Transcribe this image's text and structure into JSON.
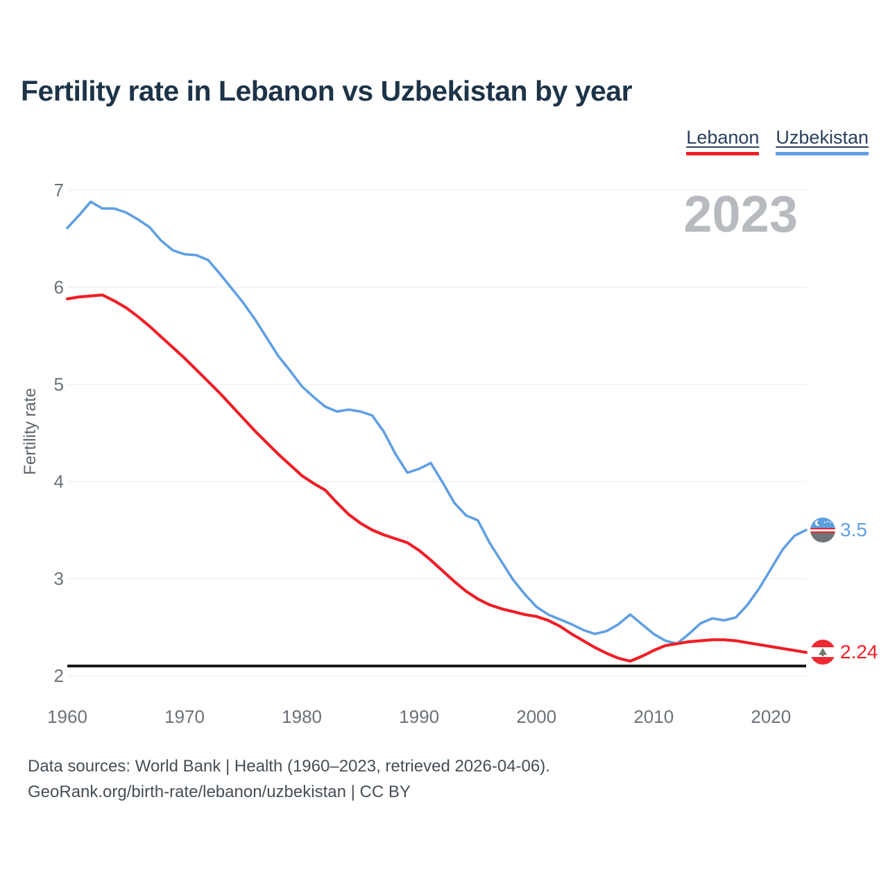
{
  "header": {
    "title": "Fertility rate in Lebanon vs Uzbekistan by year"
  },
  "legend": {
    "items": [
      {
        "label": "Lebanon",
        "color": "#ef1e26"
      },
      {
        "label": "Uzbekistan",
        "color": "#5f9fe3"
      }
    ]
  },
  "watermark": "2023",
  "chart_data": {
    "type": "line",
    "title": "Fertility rate in Lebanon vs Uzbekistan by year",
    "xlabel": "",
    "ylabel": "Fertility rate",
    "x_range": [
      1960,
      2023
    ],
    "ylim": [
      2,
      7
    ],
    "yticks": [
      2,
      3,
      4,
      5,
      6,
      7
    ],
    "xticks": [
      1960,
      1970,
      1980,
      1990,
      2000,
      2010,
      2020
    ],
    "grid": true,
    "grid_color": "#e8e8ea",
    "tick_color": "#6a7179",
    "legend_position": "top-right",
    "reference_line": {
      "value": 2.1,
      "color": "#17191c",
      "label": "replacement-level-line"
    },
    "years": [
      1960,
      1961,
      1962,
      1963,
      1964,
      1965,
      1966,
      1967,
      1968,
      1969,
      1970,
      1971,
      1972,
      1973,
      1974,
      1975,
      1976,
      1977,
      1978,
      1979,
      1980,
      1981,
      1982,
      1983,
      1984,
      1985,
      1986,
      1987,
      1988,
      1989,
      1990,
      1991,
      1992,
      1993,
      1994,
      1995,
      1996,
      1997,
      1998,
      1999,
      2000,
      2001,
      2002,
      2003,
      2004,
      2005,
      2006,
      2007,
      2008,
      2009,
      2010,
      2011,
      2012,
      2013,
      2014,
      2015,
      2016,
      2017,
      2018,
      2019,
      2020,
      2021,
      2022,
      2023
    ],
    "series": [
      {
        "name": "Lebanon",
        "color": "#ef1e26",
        "end_label": "2.24",
        "values": [
          5.88,
          5.9,
          5.91,
          5.92,
          5.86,
          5.79,
          5.7,
          5.6,
          5.49,
          5.38,
          5.27,
          5.15,
          5.03,
          4.91,
          4.78,
          4.65,
          4.52,
          4.4,
          4.28,
          4.17,
          4.06,
          3.98,
          3.91,
          3.78,
          3.66,
          3.57,
          3.5,
          3.45,
          3.41,
          3.37,
          3.29,
          3.19,
          3.08,
          2.97,
          2.87,
          2.79,
          2.73,
          2.69,
          2.66,
          2.63,
          2.61,
          2.57,
          2.51,
          2.43,
          2.36,
          2.29,
          2.23,
          2.18,
          2.15,
          2.2,
          2.26,
          2.31,
          2.33,
          2.35,
          2.36,
          2.37,
          2.37,
          2.36,
          2.34,
          2.32,
          2.3,
          2.28,
          2.26,
          2.24
        ]
      },
      {
        "name": "Uzbekistan",
        "color": "#5f9fe3",
        "end_label": "3.5",
        "values": [
          6.61,
          6.74,
          6.88,
          6.81,
          6.81,
          6.77,
          6.7,
          6.62,
          6.48,
          6.38,
          6.34,
          6.33,
          6.28,
          6.14,
          5.99,
          5.84,
          5.67,
          5.48,
          5.29,
          5.14,
          4.98,
          4.87,
          4.77,
          4.72,
          4.74,
          4.72,
          4.68,
          4.51,
          4.28,
          4.09,
          4.13,
          4.19,
          3.99,
          3.78,
          3.65,
          3.6,
          3.37,
          3.18,
          2.99,
          2.84,
          2.71,
          2.63,
          2.58,
          2.53,
          2.47,
          2.43,
          2.46,
          2.53,
          2.63,
          2.53,
          2.43,
          2.36,
          2.33,
          2.43,
          2.54,
          2.59,
          2.57,
          2.6,
          2.73,
          2.9,
          3.1,
          3.3,
          3.44,
          3.5
        ]
      }
    ]
  },
  "flags": {
    "uzbekistan": {
      "top": "#5c9fe0",
      "middle": "#ffffff",
      "bottom": "#6e7477",
      "separator": "#e8262b"
    },
    "lebanon": {
      "band": "#ee2b33",
      "middle": "#ffffff",
      "cedar": "#6f7a6f"
    }
  },
  "footer": {
    "line1": "Data sources: World Bank | Health (1960–2023, retrieved 2026-04-06).",
    "line2": "GeoRank.org/birth-rate/lebanon/uzbekistan | CC BY"
  }
}
